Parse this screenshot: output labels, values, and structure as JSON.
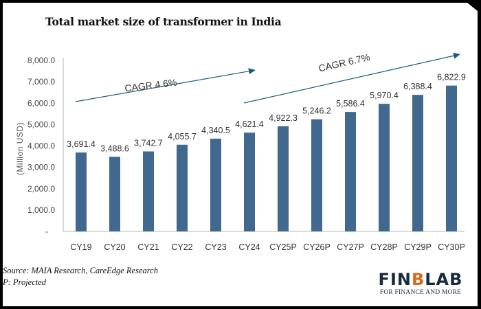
{
  "chart_data": {
    "type": "bar",
    "title": "Total market size of transformer in India",
    "ylabel": "(Million USD)",
    "xlabel": "",
    "ylim": [
      0,
      8000
    ],
    "yticks": [
      0,
      1000,
      2000,
      3000,
      4000,
      5000,
      6000,
      7000,
      8000
    ],
    "ytick_labels": [
      "-",
      "1,000.0",
      "2,000.0",
      "3,000.0",
      "4,000.0",
      "5,000.0",
      "6,000.0",
      "7,000.0",
      "8,000.0"
    ],
    "grid": false,
    "categories": [
      "CY19",
      "CY20",
      "CY21",
      "CY22",
      "CY23",
      "CY24",
      "CY25P",
      "CY26P",
      "CY27P",
      "CY28P",
      "CY29P",
      "CY30P"
    ],
    "values": [
      3691.4,
      3488.6,
      3742.7,
      4055.7,
      4340.5,
      4621.4,
      4922.3,
      5246.2,
      5586.4,
      5970.4,
      6388.4,
      6822.9
    ],
    "value_labels": [
      "3,691.4",
      "3,488.6",
      "3,742.7",
      "4,055.7",
      "4,340.5",
      "4,621.4",
      "4,922.3",
      "5,246.2",
      "5,586.4",
      "5,970.4",
      "6,388.4",
      "6,822.9"
    ],
    "bar_color": "#41688f",
    "annotations": [
      {
        "text": "CAGR 4.6%",
        "from": "CY19",
        "to": "CY24"
      },
      {
        "text": "CAGR 6.7%",
        "from": "CY24",
        "to": "CY30P"
      }
    ]
  },
  "source": {
    "line1": "Source: MAIA Research, CareEdge Research",
    "line2": "P: Projected"
  },
  "logo": {
    "part1": "FIN",
    "part2": "B",
    "part3": "LAB",
    "tagline": "FOR FINANCE AND MORE"
  },
  "colors": {
    "bar": "#41688f",
    "arrow": "#1f5a78",
    "logo_dark": "#1b2a3a",
    "logo_accent": "#d9681a"
  }
}
